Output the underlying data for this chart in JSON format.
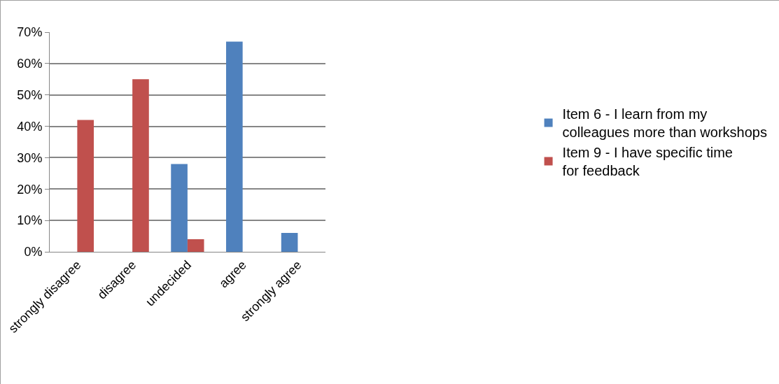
{
  "chart_data": {
    "type": "bar",
    "categories": [
      "strongly disagree",
      "disagree",
      "undecided",
      "agree",
      "strongly agree"
    ],
    "series": [
      {
        "name": "Item 6 - I learn from my colleagues more than workshops",
        "color": "#4f81bd",
        "values": [
          0,
          0,
          28,
          67,
          6
        ]
      },
      {
        "name": "Item 9 - I have specific time for feedback",
        "color": "#c0504d",
        "values": [
          42,
          55,
          4,
          0,
          0
        ]
      }
    ],
    "ylim": [
      0,
      70
    ],
    "yticks": [
      {
        "value": 0,
        "label": "0%"
      },
      {
        "value": 10,
        "label": "10%"
      },
      {
        "value": 20,
        "label": "20%"
      },
      {
        "value": 30,
        "label": "30%"
      },
      {
        "value": 40,
        "label": "40%"
      },
      {
        "value": 50,
        "label": "50%"
      },
      {
        "value": 60,
        "label": "60%"
      },
      {
        "value": 70,
        "label": "70%"
      }
    ],
    "grid": "y",
    "legend": "right"
  }
}
